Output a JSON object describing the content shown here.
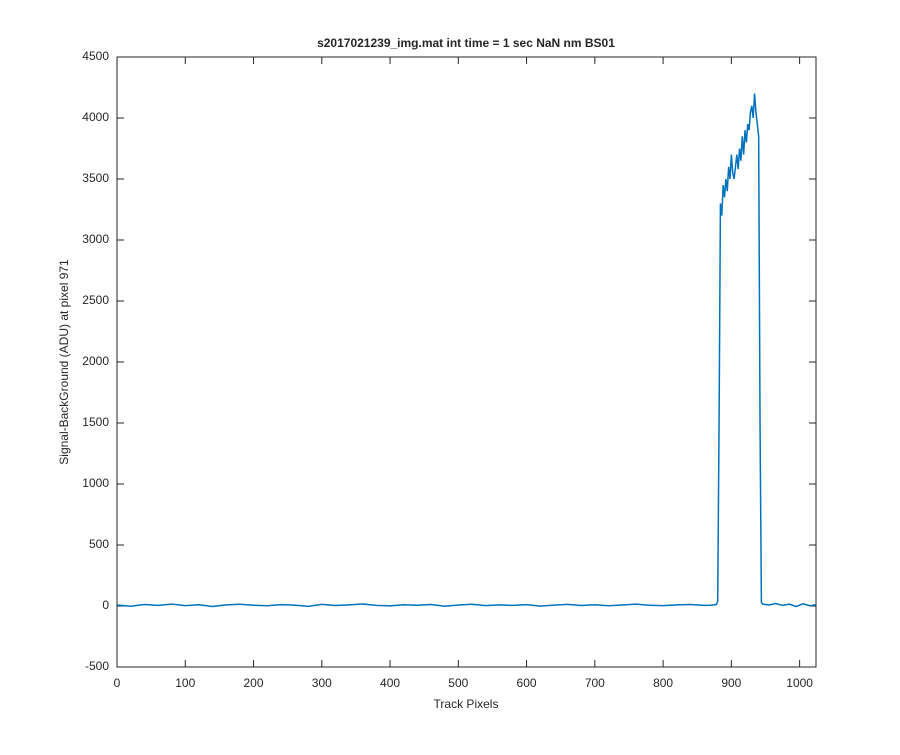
{
  "chart_data": {
    "type": "line",
    "title": "s2017021239_img.mat int time = 1 sec  NaN nm BS01",
    "x_label": "Track Pixels",
    "y_label": "Signal-BackGround (ADU) at pixel 971",
    "color": "#0072bd",
    "x": [
      0,
      20,
      40,
      60,
      80,
      100,
      120,
      140,
      160,
      180,
      200,
      220,
      240,
      260,
      280,
      300,
      320,
      340,
      360,
      380,
      400,
      420,
      440,
      460,
      480,
      500,
      520,
      540,
      560,
      580,
      600,
      620,
      640,
      660,
      680,
      700,
      720,
      740,
      760,
      780,
      800,
      820,
      840,
      860,
      870,
      878,
      880,
      882,
      884,
      886,
      888,
      890,
      892,
      894,
      896,
      898,
      900,
      902,
      904,
      906,
      908,
      910,
      912,
      914,
      916,
      918,
      920,
      922,
      924,
      926,
      928,
      930,
      932,
      934,
      936,
      938,
      940,
      942,
      944,
      946,
      955,
      965,
      975,
      985,
      995,
      1005,
      1015,
      1024
    ],
    "values": [
      8,
      -2,
      12,
      5,
      15,
      3,
      10,
      -4,
      9,
      14,
      6,
      2,
      11,
      7,
      -3,
      13,
      4,
      9,
      16,
      5,
      1,
      10,
      6,
      12,
      -2,
      8,
      14,
      3,
      9,
      5,
      11,
      -1,
      7,
      13,
      4,
      10,
      2,
      8,
      15,
      6,
      3,
      9,
      12,
      5,
      6,
      12,
      40,
      1500,
      3300,
      3200,
      3450,
      3350,
      3500,
      3400,
      3600,
      3500,
      3700,
      3550,
      3500,
      3600,
      3700,
      3580,
      3750,
      3650,
      3850,
      3700,
      3900,
      3800,
      3950,
      3900,
      4050,
      4100,
      4000,
      4200,
      4050,
      3950,
      3850,
      1500,
      30,
      15,
      8,
      20,
      5,
      15,
      -5,
      18,
      2,
      10
    ],
    "xlim": [
      0,
      1024
    ],
    "ylim": [
      -500,
      4500
    ],
    "xticks": [
      0,
      100,
      200,
      300,
      400,
      500,
      600,
      700,
      800,
      900,
      1000
    ],
    "yticks": [
      -500,
      0,
      500,
      1000,
      1500,
      2000,
      2500,
      3000,
      3500,
      4000,
      4500
    ]
  }
}
